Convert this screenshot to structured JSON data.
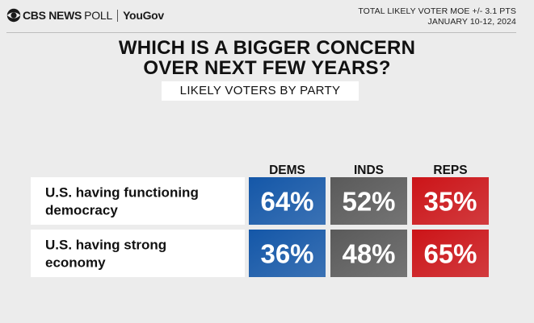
{
  "header": {
    "brand_cbs": "CBS NEWS",
    "brand_poll": "POLL",
    "brand_partner": "YouGov",
    "moe_line1": "TOTAL LIKELY VOTER MOE +/- 3.1 PTS",
    "moe_line2": "JANUARY 10-12, 2024"
  },
  "chart_data": {
    "type": "table",
    "title_line1": "WHICH IS A BIGGER CONCERN",
    "title_line2": "OVER NEXT FEW YEARS?",
    "subtitle": "LIKELY VOTERS BY PARTY",
    "columns": [
      "DEMS",
      "INDS",
      "REPS"
    ],
    "column_colors": [
      "#1457a8",
      "#5a5a5a",
      "#cc1418"
    ],
    "rows": [
      {
        "label_lines": [
          "U.S. having functioning",
          "democracy"
        ],
        "values": [
          64,
          52,
          35
        ]
      },
      {
        "label_lines": [
          "U.S. having strong",
          "economy"
        ],
        "values": [
          36,
          48,
          65
        ]
      }
    ],
    "value_suffix": "%"
  }
}
